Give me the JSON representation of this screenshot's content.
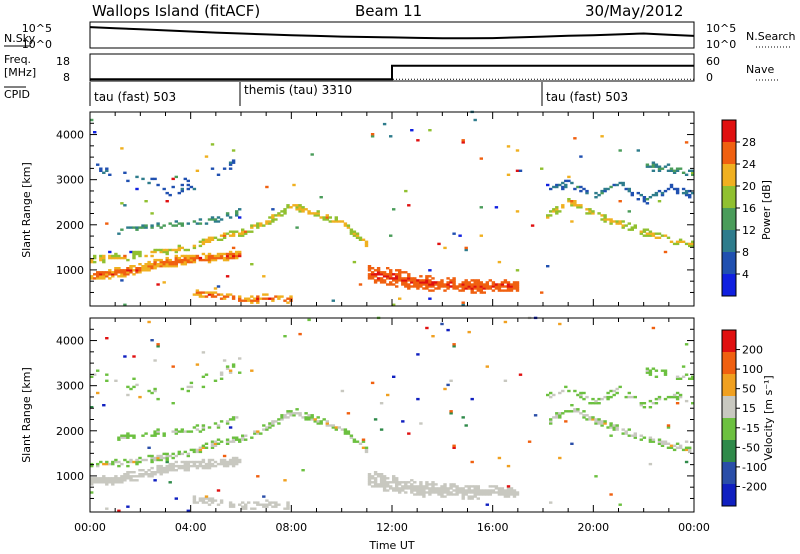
{
  "header": {
    "title": "Wallops Island (fitACF)",
    "beam": "Beam 11",
    "date": "30/May/2012"
  },
  "top_panels": {
    "nsky_label": "N.Sky",
    "nsky_ticks": [
      "10^5",
      "10^0"
    ],
    "nsearch_label": "N.Search",
    "nsearch_ticks": [
      "10^5",
      "10^0"
    ],
    "freq_label": "Freq.",
    "freq_unit": "[MHz]",
    "freq_ticks": [
      "18",
      "8"
    ],
    "nave_label": "Nave",
    "nave_ticks": [
      "60",
      "0"
    ],
    "cpid_label": "CPID",
    "cpid_segments": [
      {
        "label": "tau (fast) 503",
        "start": 0,
        "end": 6
      },
      {
        "label": "themis (tau) 3310",
        "start": 6,
        "end": 18
      },
      {
        "label": "tau (fast) 503",
        "start": 18,
        "end": 24
      }
    ]
  },
  "colorbars": {
    "power": {
      "label": "Power [dB]",
      "ticks": [
        "28",
        "24",
        "20",
        "16",
        "12",
        "8",
        "4"
      ]
    },
    "velocity": {
      "label": "Velocity [m s⁻¹]",
      "ticks": [
        "200",
        "100",
        "50",
        "15",
        "-15",
        "-50",
        "-100",
        "-200"
      ]
    }
  },
  "chart_data": [
    {
      "type": "line",
      "name": "top-panels",
      "x_range": [
        0,
        24
      ],
      "nsky": {
        "x": [
          0,
          1,
          2,
          3,
          4,
          5,
          6,
          7,
          8,
          9,
          10,
          11,
          12,
          13,
          14,
          15,
          16,
          17,
          18,
          19,
          20,
          21,
          22,
          23,
          24
        ],
        "y_frac": [
          0.95,
          0.9,
          0.85,
          0.8,
          0.75,
          0.7,
          0.66,
          0.62,
          0.58,
          0.55,
          0.52,
          0.5,
          0.48,
          0.46,
          0.44,
          0.44,
          0.45,
          0.48,
          0.52,
          0.56,
          0.58,
          0.62,
          0.66,
          0.6,
          0.55
        ]
      },
      "freq_mhz": {
        "x": [
          0,
          12,
          12,
          24
        ],
        "y": [
          9,
          9,
          16.5,
          16.5
        ]
      },
      "nave": {
        "x": [
          0,
          24
        ],
        "y": [
          2,
          2
        ]
      }
    },
    {
      "type": "heatmap",
      "name": "power",
      "title": "",
      "xlabel": "",
      "ylabel": "Slant Range [km]",
      "x_range": [
        0,
        24
      ],
      "ylim": [
        200,
        4500
      ],
      "x_ticks": [
        "00:00",
        "04:00",
        "08:00",
        "12:00",
        "16:00",
        "20:00",
        "00:00"
      ],
      "y_ticks": [
        1000,
        2000,
        3000,
        4000
      ],
      "colorbar": "Power [dB]"
    },
    {
      "type": "heatmap",
      "name": "velocity",
      "title": "",
      "xlabel": "Time UT",
      "ylabel": "Slant Range [km]",
      "x_range": [
        0,
        24
      ],
      "ylim": [
        200,
        4500
      ],
      "x_ticks": [
        "00:00",
        "04:00",
        "08:00",
        "12:00",
        "16:00",
        "20:00",
        "00:00"
      ],
      "y_ticks": [
        1000,
        2000,
        3000,
        4000
      ],
      "colorbar": "Velocity [m s⁻¹]"
    }
  ],
  "palette": {
    "power": [
      "#1020e0",
      "#2050b0",
      "#2e7c8c",
      "#4a9c5a",
      "#90c030",
      "#f0b020",
      "#f06010",
      "#e01010"
    ],
    "velocity": [
      "#1020c0",
      "#2a4ea8",
      "#2f8a4a",
      "#6cc040",
      "#c8c8c0",
      "#f0a020",
      "#f06010",
      "#e01010"
    ]
  }
}
